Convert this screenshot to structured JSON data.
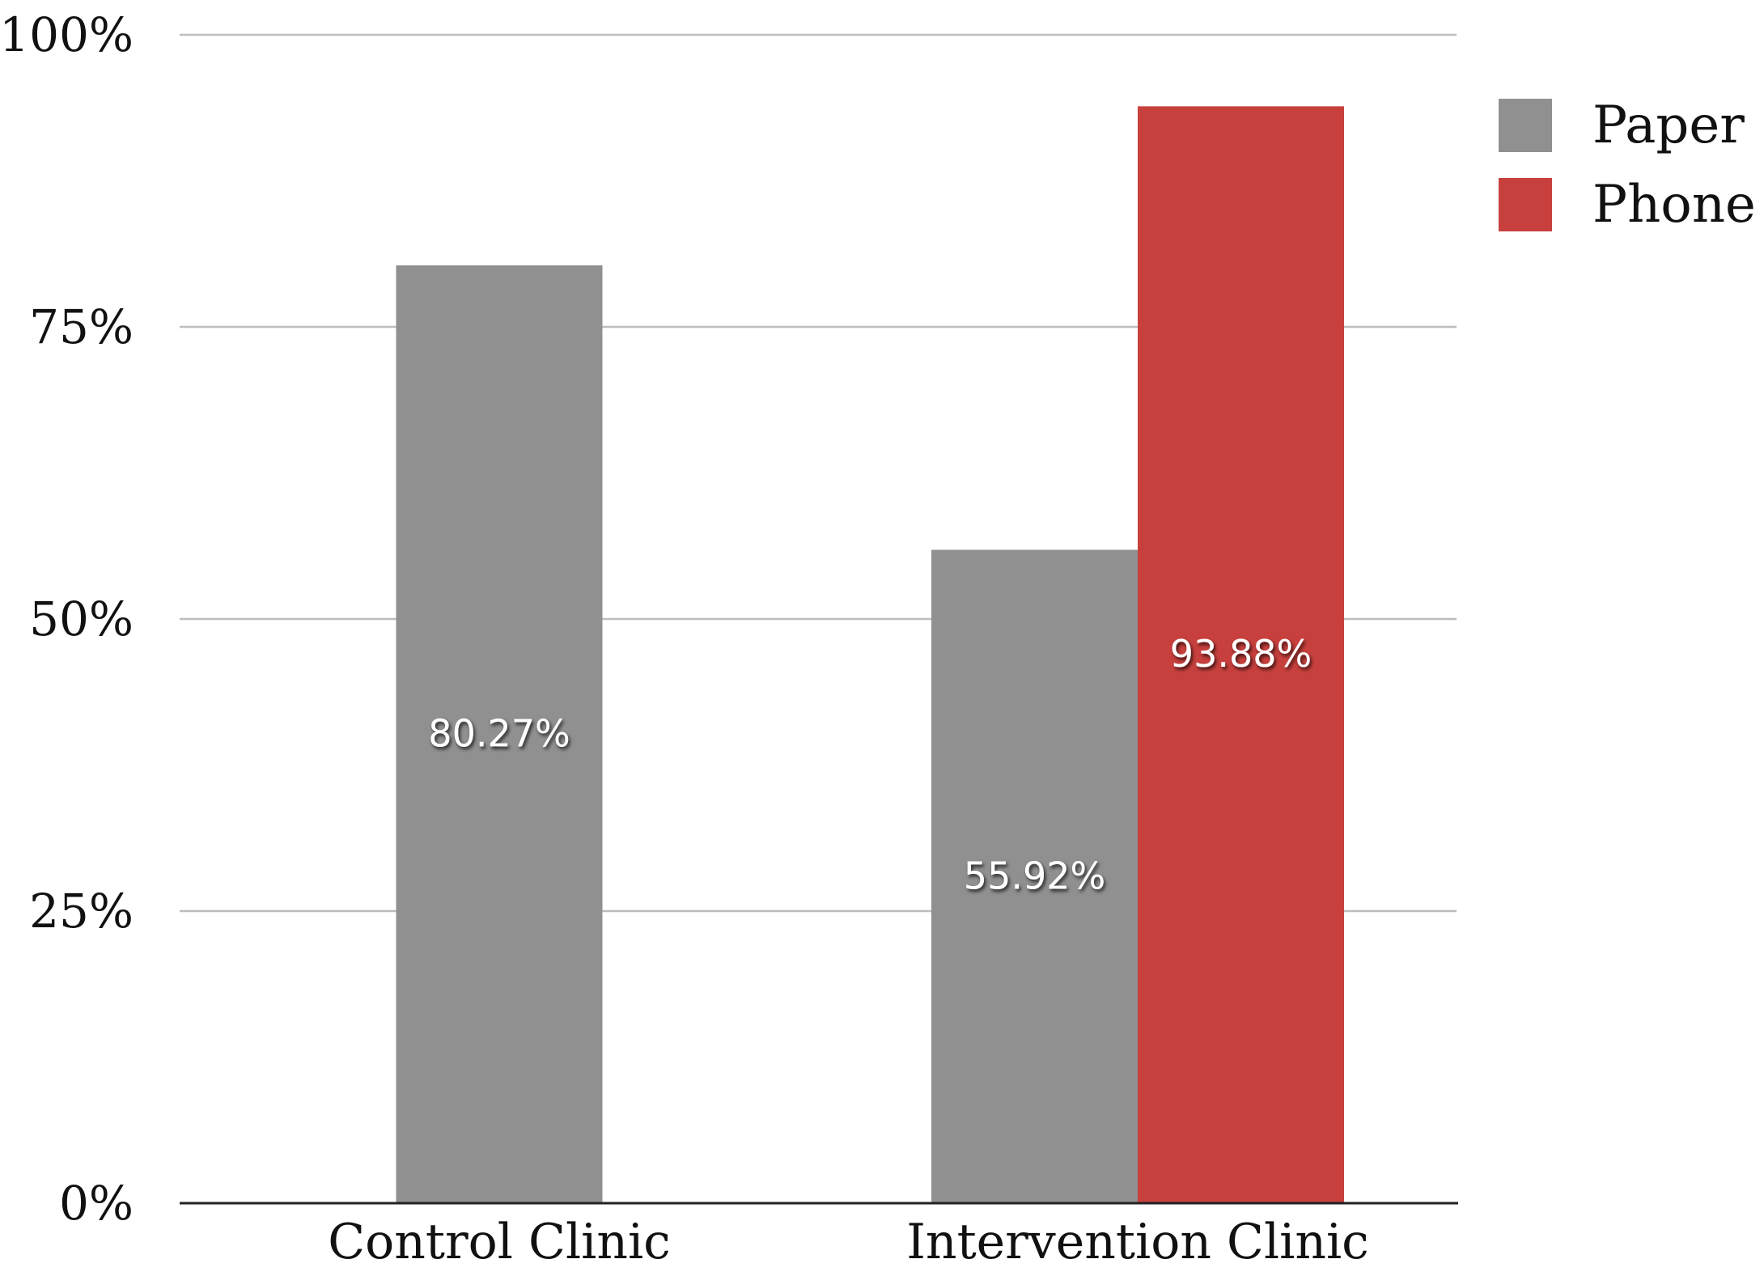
{
  "chart_data": {
    "type": "bar",
    "title": "",
    "xlabel": "",
    "ylabel": "",
    "ylim": [
      0,
      100
    ],
    "yticks": [
      0,
      25,
      50,
      75,
      100
    ],
    "ytick_labels": [
      "0%",
      "25%",
      "50%",
      "75%",
      "100%"
    ],
    "categories": [
      "Control Clinic",
      "Intervention Clinic"
    ],
    "series": [
      {
        "name": "Paper",
        "color": "#8f908f",
        "values": [
          80.27,
          55.92
        ],
        "labels": [
          "80.27%",
          "55.92%"
        ]
      },
      {
        "name": "Phone",
        "color": "#c8403d",
        "values": [
          null,
          93.88
        ],
        "labels": [
          null,
          "93.88%"
        ]
      }
    ],
    "legend": {
      "position": "top-right"
    },
    "grid": true
  }
}
